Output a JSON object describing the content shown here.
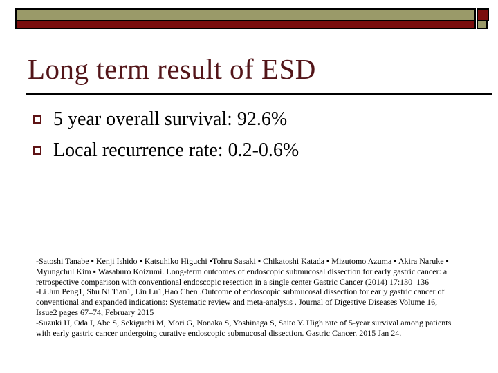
{
  "slide": {
    "title": "Long term result of ESD",
    "bullets": [
      "5 year overall survival: 92.6%",
      "Local recurrence rate: 0.2-0.6%"
    ],
    "citations": [
      "-Satoshi Tanabe ▪ Kenji Ishido ▪ Katsuhiko Higuchi ▪Tohru Sasaki ▪ Chikatoshi Katada ▪ Mizutomo Azuma ▪ Akira Naruke ▪",
      "Myungchul Kim ▪ Wasaburo Koizumi. Long-term outcomes of endoscopic submucosal dissection for early gastric cancer: a",
      "retrospective comparison with conventional endoscopic resection in a single center Gastric Cancer (2014) 17:130–136",
      "-Li Jun Peng1, Shu Ni Tian1, Lin Lu1,Hao Chen .Outcome of endoscopic submucosal dissection for early gastric cancer of",
      "conventional and expanded indications: Systematic review and meta-analysis . Journal of Digestive Diseases Volume 16,",
      "Issue2 pages 67–74, February 2015",
      "-Suzuki H, Oda I, Abe S, Sekiguchi M, Mori G, Nonaka S, Yoshinaga S, Saito Y. High rate of 5-year survival among patients",
      "with early gastric cancer undergoing curative endoscopic submucosal dissection. Gastric Cancer. 2015 Jan 24."
    ],
    "colors": {
      "olive": "#9a9a69",
      "dark_red": "#7a0d0d",
      "title_maroon": "#531519",
      "bullet_outline": "#5e1315",
      "body_text": "#000000"
    }
  }
}
